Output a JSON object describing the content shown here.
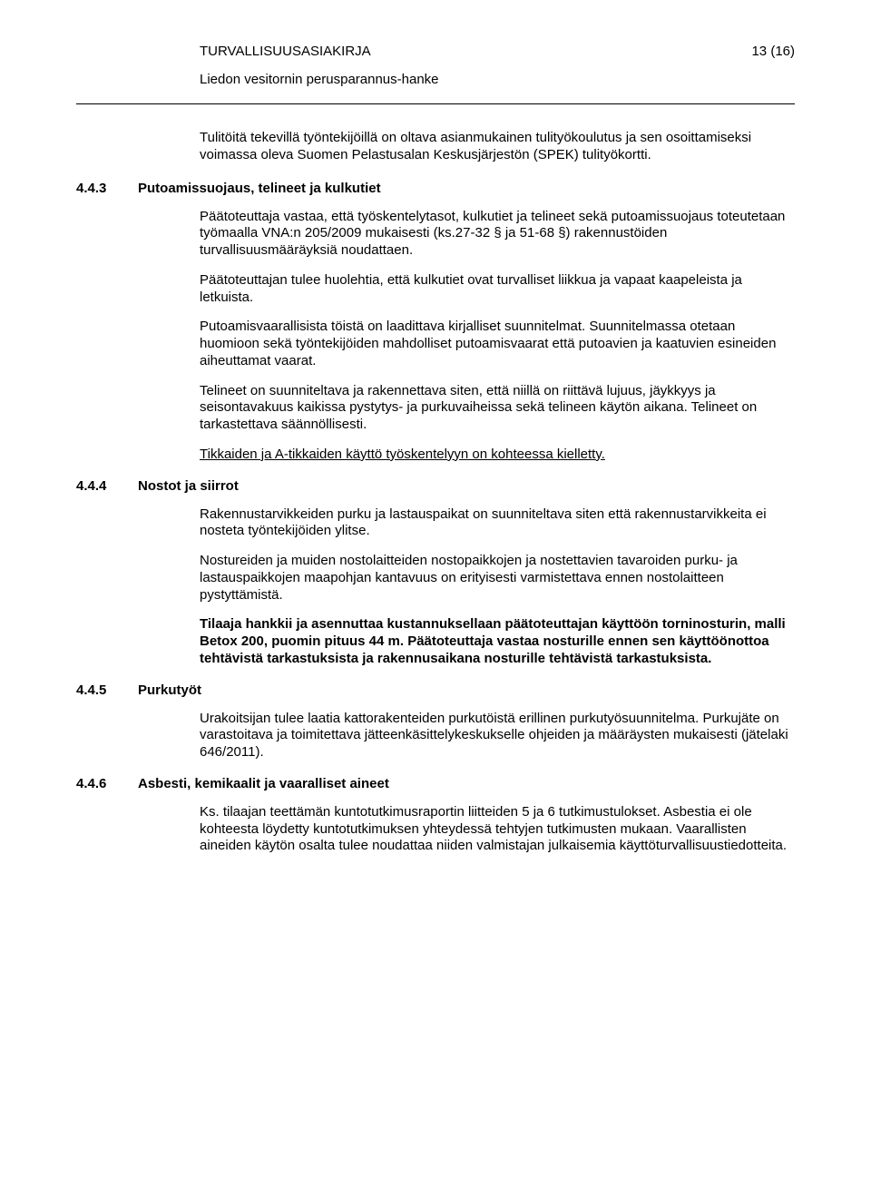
{
  "header": {
    "title": "TURVALLISUUSASIAKIRJA",
    "page": "13 (16)",
    "subtitle": "Liedon vesitornin perusparannus-hanke"
  },
  "intro_para": "Tulitöitä tekevillä työntekijöillä on oltava asianmukainen tulityökoulutus ja sen osoittamiseksi voimassa oleva Suomen Pelastusalan Keskusjärjestön (SPEK) tulityökortti.",
  "sections": [
    {
      "num": "4.4.3",
      "title": "Putoamissuojaus, telineet ja kulkutiet",
      "paras": [
        {
          "text": "Päätoteuttaja vastaa, että työskentelytasot, kulkutiet ja telineet sekä putoamissuojaus toteutetaan työmaalla VNA:n 205/2009 mukaisesti (ks.27-32 § ja 51-68 §) rakennustöiden turvallisuusmääräyksiä noudattaen."
        },
        {
          "text": "Päätoteuttajan tulee huolehtia, että kulkutiet ovat turvalliset liikkua ja vapaat kaapeleista ja letkuista."
        },
        {
          "text": "Putoamisvaarallisista töistä on laadittava kirjalliset suunnitelmat. Suunnitelmassa otetaan huomioon sekä työntekijöiden mahdolliset putoamisvaarat että putoavien ja kaatuvien esineiden aiheuttamat vaarat."
        },
        {
          "text": "Telineet on suunniteltava ja rakennettava siten, että niillä on riittävä lujuus, jäykkyys ja seisontavakuus kaikissa pystytys- ja purkuvaiheissa sekä telineen käytön aikana. Telineet on tarkastettava säännöllisesti."
        },
        {
          "text": "Tikkaiden ja A-tikkaiden käyttö työskentelyyn on kohteessa kielletty.",
          "underline": true
        }
      ]
    },
    {
      "num": "4.4.4",
      "title": "Nostot ja siirrot",
      "paras": [
        {
          "text": "Rakennustarvikkeiden purku ja lastauspaikat on suunniteltava siten että rakennustarvikkeita ei nosteta työntekijöiden ylitse."
        },
        {
          "text": "Nostureiden ja muiden nostolaitteiden nostopaikkojen ja nostettavien tavaroiden purku- ja lastauspaikkojen maapohjan kantavuus on erityisesti varmistettava ennen nostolaitteen pystyttämistä."
        },
        {
          "text": "Tilaaja hankkii ja asennuttaa kustannuksellaan päätoteuttajan käyttöön torninosturin, malli Betox 200, puomin pituus 44 m. Päätoteuttaja vastaa nosturille ennen sen käyttöönottoa tehtävistä tarkastuksista ja rakennusaikana nosturille tehtävistä tarkastuksista.",
          "bold": true
        }
      ]
    },
    {
      "num": "4.4.5",
      "title": "Purkutyöt",
      "paras": [
        {
          "text": "Urakoitsijan tulee laatia kattorakenteiden purkutöistä erillinen purkutyösuunnitelma. Purkujäte on varastoitava ja toimitettava jätteenkäsittelykeskukselle ohjeiden ja määräysten mukaisesti (jätelaki 646/2011)."
        }
      ]
    },
    {
      "num": "4.4.6",
      "title": "Asbesti, kemikaalit ja vaaralliset aineet",
      "paras": [
        {
          "text": "Ks. tilaajan teettämän kuntotutkimusraportin liitteiden 5 ja 6 tutkimustulokset. Asbestia ei ole kohteesta löydetty kuntotutkimuksen yhteydessä tehtyjen tutkimusten mukaan. Vaarallisten aineiden käytön osalta tulee noudattaa niiden valmistajan julkaisemia käyttöturvallisuustiedotteita."
        }
      ]
    }
  ]
}
